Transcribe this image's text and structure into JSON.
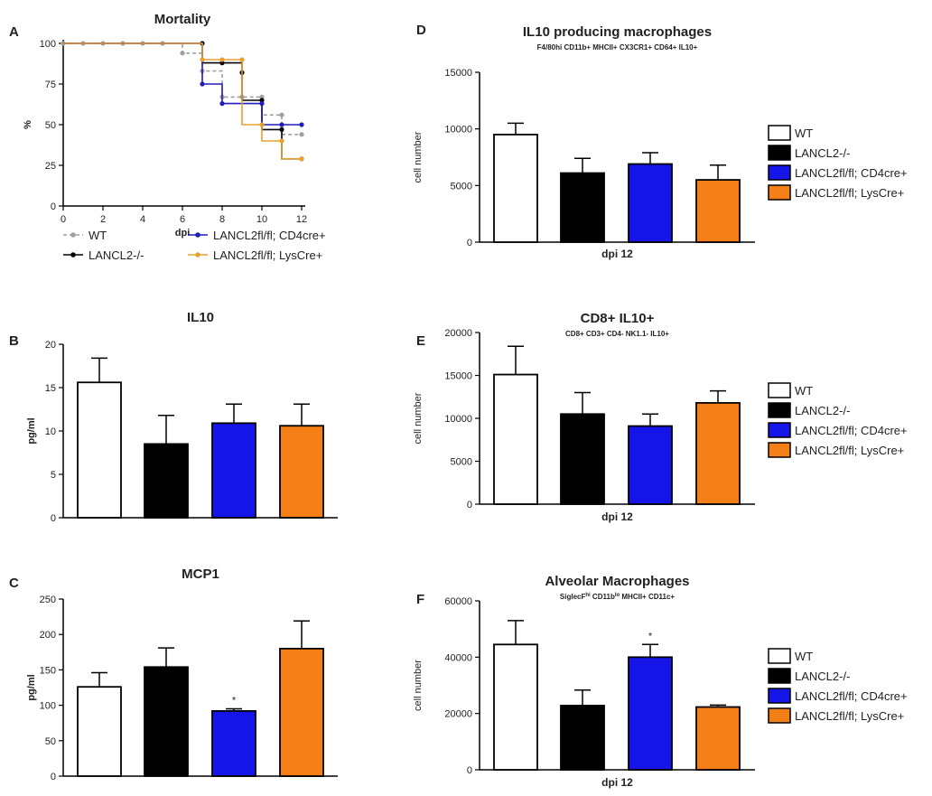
{
  "figure": {
    "colors": {
      "WT": "#ffffff",
      "LANCL2": "#000000",
      "CD4": "#1515e8",
      "Lys": "#f57f17",
      "WT_line": "#a0a0a0",
      "CD4_line": "#1f1fb8",
      "Lys_line": "#e8a030"
    }
  },
  "chart_data": [
    {
      "panel": "A",
      "type": "line",
      "title": "Mortality",
      "xlabel": "dpi",
      "ylabel": "%",
      "xlim": [
        0,
        12
      ],
      "ylim": [
        0,
        100
      ],
      "xticks": [
        0,
        2,
        4,
        6,
        8,
        10,
        12
      ],
      "yticks": [
        0,
        25,
        50,
        75,
        100
      ],
      "legend_position": "bottom",
      "series": [
        {
          "name": "WT",
          "color_key": "WT_line",
          "dashed": true,
          "steps": [
            [
              0,
              100
            ],
            [
              6,
              100
            ],
            [
              6,
              94
            ],
            [
              7,
              94
            ],
            [
              7,
              83
            ],
            [
              8,
              83
            ],
            [
              8,
              67
            ],
            [
              10,
              67
            ],
            [
              10,
              56
            ],
            [
              11,
              56
            ],
            [
              11,
              44
            ],
            [
              12,
              44
            ]
          ],
          "markers": [
            [
              0,
              100
            ],
            [
              1,
              100
            ],
            [
              2,
              100
            ],
            [
              3,
              100
            ],
            [
              4,
              100
            ],
            [
              5,
              100
            ],
            [
              6,
              94
            ],
            [
              7,
              83
            ],
            [
              8,
              67
            ],
            [
              9,
              67
            ],
            [
              10,
              67
            ],
            [
              11,
              56
            ],
            [
              12,
              44
            ]
          ]
        },
        {
          "name": "LANCL2-/-",
          "color_key": "LANCL2",
          "dashed": false,
          "steps": [
            [
              0,
              100
            ],
            [
              7,
              100
            ],
            [
              7,
              88
            ],
            [
              9,
              88
            ],
            [
              9,
              82
            ],
            [
              9,
              82
            ],
            [
              9,
              65
            ],
            [
              10,
              65
            ],
            [
              10,
              47
            ],
            [
              11,
              47
            ],
            [
              11,
              29
            ],
            [
              12,
              29
            ]
          ],
          "markers": [
            [
              7,
              100
            ],
            [
              8,
              88
            ],
            [
              9,
              82
            ],
            [
              10,
              65
            ],
            [
              11,
              47
            ],
            [
              12,
              29
            ]
          ]
        },
        {
          "name": "LANCL2fl/fl; CD4cre+",
          "color_key": "CD4_line",
          "dashed": false,
          "steps": [
            [
              0,
              100
            ],
            [
              7,
              100
            ],
            [
              7,
              75
            ],
            [
              8,
              75
            ],
            [
              8,
              63
            ],
            [
              10,
              63
            ],
            [
              10,
              50
            ],
            [
              12,
              50
            ]
          ],
          "markers": [
            [
              7,
              75
            ],
            [
              8,
              63
            ],
            [
              10,
              63
            ],
            [
              11,
              50
            ],
            [
              12,
              50
            ]
          ]
        },
        {
          "name": "LANCL2fl/fl; LysCre+",
          "color_key": "Lys_line",
          "dashed": false,
          "steps": [
            [
              0,
              100
            ],
            [
              7,
              100
            ],
            [
              7,
              90
            ],
            [
              9,
              90
            ],
            [
              9,
              50
            ],
            [
              10,
              50
            ],
            [
              10,
              40
            ],
            [
              11,
              40
            ],
            [
              11,
              29
            ],
            [
              12,
              29
            ]
          ],
          "markers": [
            [
              7,
              90
            ],
            [
              8,
              90
            ],
            [
              9,
              90
            ],
            [
              10,
              50
            ],
            [
              11,
              40
            ],
            [
              12,
              29
            ]
          ]
        }
      ]
    },
    {
      "panel": "B",
      "type": "bar",
      "title": "IL10",
      "ylabel": "pg/ml",
      "ylim": [
        0,
        20
      ],
      "yticks": [
        0,
        5,
        10,
        15,
        20
      ],
      "categories": [
        "WT",
        "LANCL2-/-",
        "LANCL2fl/fl; CD4cre+",
        "LANCL2fl/fl; LysCre+"
      ],
      "values": [
        15.6,
        8.5,
        10.9,
        10.6
      ],
      "errors": [
        2.8,
        3.3,
        2.2,
        2.5
      ]
    },
    {
      "panel": "C",
      "type": "bar",
      "title": "MCP1",
      "ylabel": "pg/ml",
      "ylim": [
        0,
        250
      ],
      "yticks": [
        0,
        50,
        100,
        150,
        200,
        250
      ],
      "categories": [
        "WT",
        "LANCL2-/-",
        "LANCL2fl/fl; CD4cre+",
        "LANCL2fl/fl; LysCre+"
      ],
      "values": [
        126,
        154,
        92,
        180
      ],
      "errors": [
        20,
        27,
        3,
        39
      ],
      "annotations": [
        {
          "index": 2,
          "text": "*"
        }
      ]
    },
    {
      "panel": "D",
      "type": "bar",
      "title": "IL10 producing macrophages",
      "subtitle": "F4/80hi CD11b+ MHCII+ CX3CR1+ CD64+ IL10+",
      "ylabel": "cell number",
      "xlabel": "dpi 12",
      "ylim": [
        0,
        15000
      ],
      "yticks": [
        0,
        5000,
        10000,
        15000
      ],
      "categories": [
        "WT",
        "LANCL2-/-",
        "LANCL2fl/fl; CD4cre+",
        "LANCL2fl/fl; LysCre+"
      ],
      "values": [
        9500,
        6100,
        6900,
        5500
      ],
      "errors": [
        1000,
        1300,
        1000,
        1300
      ],
      "legend_position": "right"
    },
    {
      "panel": "E",
      "type": "bar",
      "title": "CD8+ IL10+",
      "subtitle": "CD8+ CD3+ CD4- NK1.1- IL10+",
      "ylabel": "cell number",
      "xlabel": "dpi 12",
      "ylim": [
        0,
        20000
      ],
      "yticks": [
        0,
        5000,
        10000,
        15000,
        20000
      ],
      "categories": [
        "WT",
        "LANCL2-/-",
        "LANCL2fl/fl; CD4cre+",
        "LANCL2fl/fl; LysCre+"
      ],
      "values": [
        15100,
        10500,
        9100,
        11800
      ],
      "errors": [
        3300,
        2500,
        1400,
        1400
      ],
      "legend_position": "right"
    },
    {
      "panel": "F",
      "type": "bar",
      "title": "Alveolar Macrophages",
      "subtitle_parts": [
        "SiglecF",
        "hi",
        " CD11b",
        "lo",
        " MHCII+ CD11c+"
      ],
      "ylabel": "cell number",
      "xlabel": "dpi 12",
      "ylim": [
        0,
        60000
      ],
      "yticks": [
        0,
        20000,
        40000,
        60000
      ],
      "categories": [
        "WT",
        "LANCL2-/-",
        "LANCL2fl/fl; CD4cre+",
        "LANCL2fl/fl; LysCre+"
      ],
      "values": [
        44500,
        22800,
        40000,
        22300
      ],
      "errors": [
        8500,
        5500,
        4500,
        700
      ],
      "annotations": [
        {
          "index": 2,
          "text": "*"
        }
      ],
      "legend_position": "right"
    }
  ]
}
